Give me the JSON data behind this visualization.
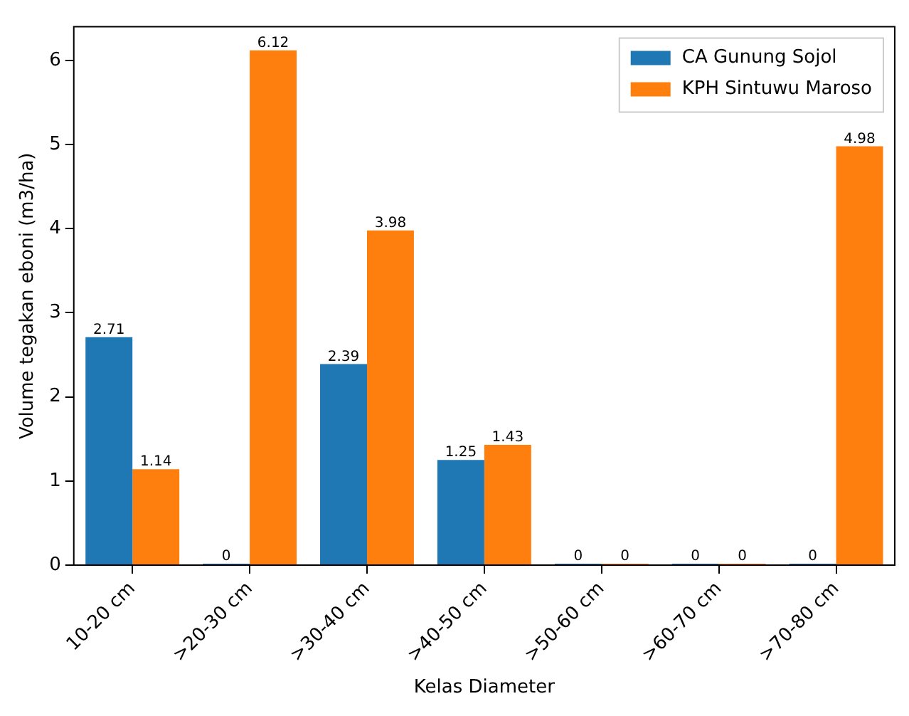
{
  "chart_data": {
    "type": "bar",
    "xlabel": "Kelas Diameter",
    "ylabel": "Volume tegakan eboni (m3/ha)",
    "categories": [
      "10-20 cm",
      ">20-30 cm",
      ">30-40 cm",
      ">40-50 cm",
      ">50-60 cm",
      ">60-70 cm",
      ">70-80 cm"
    ],
    "series": [
      {
        "name": "CA Gunung Sojol",
        "color": "#1f77b4",
        "values": [
          2.71,
          0,
          2.39,
          1.25,
          0,
          0,
          0
        ]
      },
      {
        "name": "KPH Sintuwu Maroso",
        "color": "#ff7f0e",
        "values": [
          1.14,
          6.12,
          3.98,
          1.43,
          0,
          0,
          4.98
        ]
      }
    ],
    "ylim": [
      0,
      6.4
    ],
    "yticks": [
      0,
      1,
      2,
      3,
      4,
      5,
      6
    ],
    "grid": false,
    "legend": "top right",
    "data_labels": true
  }
}
